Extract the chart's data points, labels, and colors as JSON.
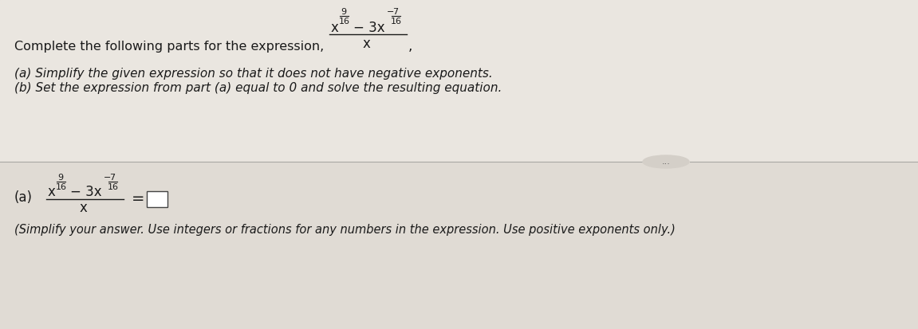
{
  "bg_color": "#e8e4de",
  "text_color": "#1a1a1a",
  "top_section": {
    "intro_text": "Complete the following parts for the expression,",
    "point_a": "(a) Simplify the given expression so that it does not have negative exponents.",
    "point_b": "(b) Set the expression from part (a) equal to 0 and solve the resulting equation."
  },
  "bottom_section": {
    "part_a_label": "(a)",
    "simplify_note": "(Simplify your answer. Use integers or fractions for any numbers in the expression. Use positive exponents only.)"
  },
  "dots_button": "...",
  "divider_color": "#aaa9a5",
  "dots_bg": "#d4cfc8"
}
